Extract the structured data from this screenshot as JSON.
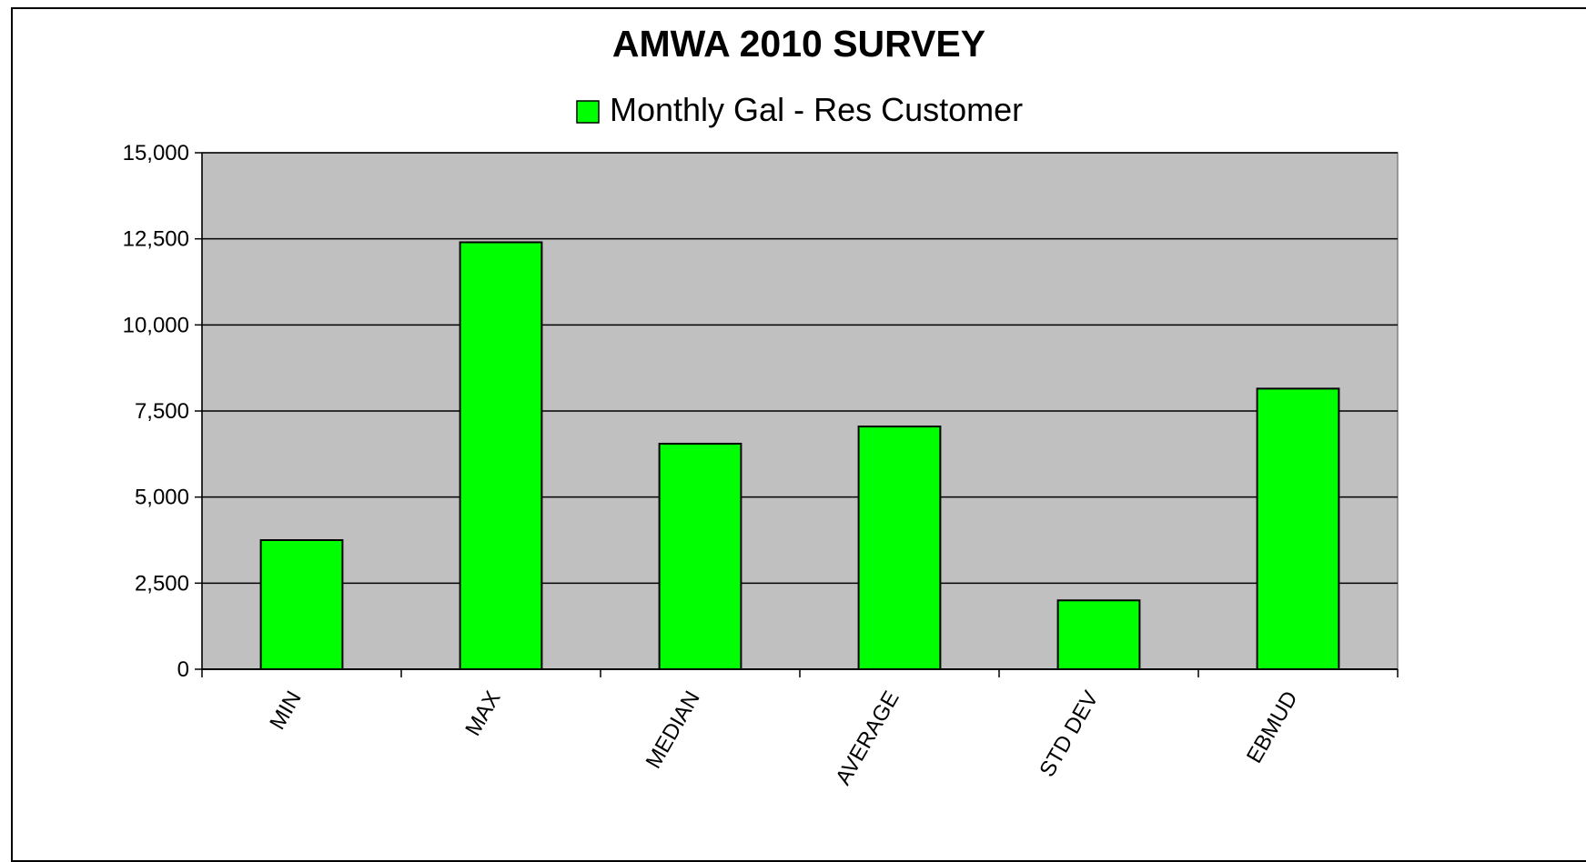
{
  "chart_data": {
    "type": "bar",
    "title": "AMWA 2010 SURVEY",
    "categories": [
      "MIN",
      "MAX",
      "MEDIAN",
      "AVERAGE",
      "STD DEV",
      "EBMUD"
    ],
    "series": [
      {
        "name": "Monthly Gal - Res Customer",
        "values": [
          3750,
          12400,
          6550,
          7050,
          2000,
          8150
        ],
        "color": "#00ff00"
      }
    ],
    "ylim": [
      0,
      15000
    ],
    "yticks": [
      0,
      2500,
      5000,
      7500,
      10000,
      12500,
      15000
    ],
    "ytick_labels": [
      "0",
      "2,500",
      "5,000",
      "7,500",
      "10,000",
      "12,500",
      "15,000"
    ],
    "xlabel": "",
    "ylabel": "",
    "grid": true,
    "legend_position": "top",
    "plot_background": "#c0c0c0"
  }
}
